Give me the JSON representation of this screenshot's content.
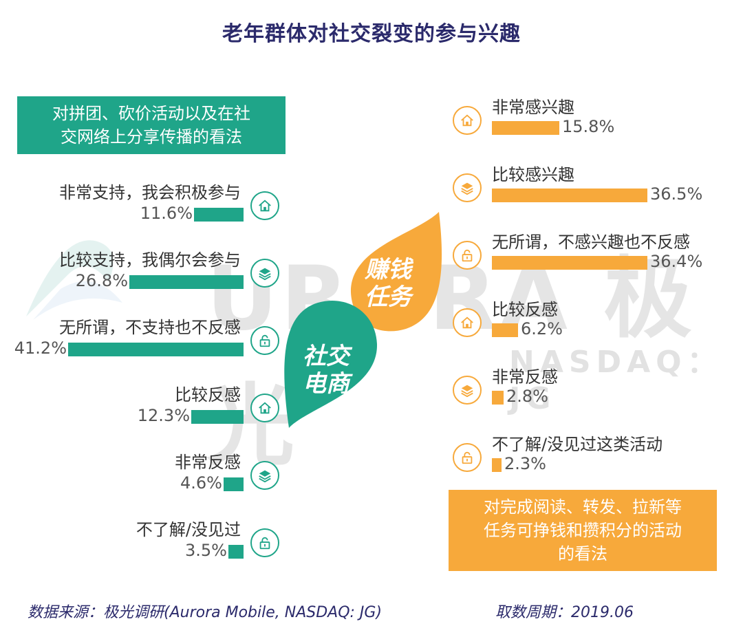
{
  "title": "老年群体对社交裂变的参与兴趣",
  "left_box": {
    "line1": "对拼团、砍价活动以及在社",
    "line2": "交网络上分享传播的看法"
  },
  "right_box": {
    "line1": "对完成阅读、转发、拉新等",
    "line2": "任务可挣钱和攒积分的活动",
    "line3": "的看法"
  },
  "center": {
    "green_line1": "社交",
    "green_line2": "电商",
    "orange_line1": "赚钱",
    "orange_line2": "任务"
  },
  "watermark": {
    "main": "URORA 极光",
    "sub": "NASDAQ：JG"
  },
  "colors": {
    "green": "#1fa589",
    "orange": "#f7a93b",
    "title": "#2b2a6b"
  },
  "footer": {
    "source": "数据来源：极光调研(Aurora Mobile, NASDAQ: JG)",
    "period": "取数周期：2019.06"
  },
  "chart_data": [
    {
      "type": "bar",
      "title": "对拼团、砍价活动以及在社交网络上分享传播的看法",
      "categories": [
        "非常支持，我会积极参与",
        "比较支持，我偶尔会参与",
        "无所谓，不支持也不反感",
        "比较反感",
        "非常反感",
        "不了解/没见过"
      ],
      "values": [
        11.6,
        26.8,
        41.2,
        12.3,
        4.6,
        3.5
      ],
      "labels": [
        "11.6%",
        "26.8%",
        "41.2%",
        "12.3%",
        "4.6%",
        "3.5%"
      ],
      "icons": [
        "home-icon",
        "layers-icon",
        "lock-icon",
        "home-icon",
        "layers-icon",
        "lock-icon"
      ],
      "unit": "%"
    },
    {
      "type": "bar",
      "title": "对完成阅读、转发、拉新等任务可挣钱和攒积分的活动的看法",
      "categories": [
        "非常感兴趣",
        "比较感兴趣",
        "无所谓，不感兴趣也不反感",
        "比较反感",
        "非常反感",
        "不了解/没见过这类活动"
      ],
      "values": [
        15.8,
        36.5,
        36.4,
        6.2,
        2.8,
        2.3
      ],
      "labels": [
        "15.8%",
        "36.5%",
        "36.4%",
        "6.2%",
        "2.8%",
        "2.3%"
      ],
      "icons": [
        "home-icon",
        "layers-icon",
        "lock-icon",
        "home-icon",
        "layers-icon",
        "lock-icon"
      ],
      "unit": "%"
    }
  ]
}
